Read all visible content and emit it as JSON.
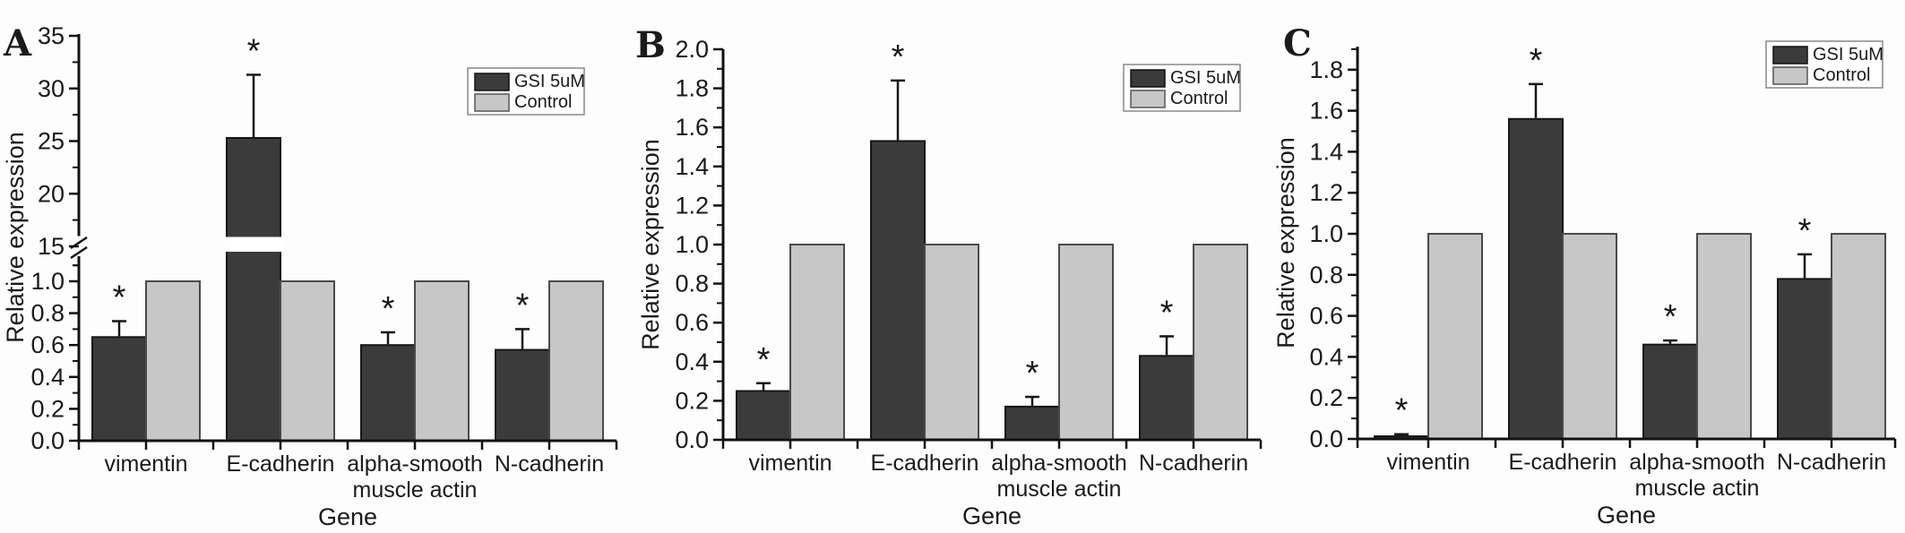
{
  "figure": {
    "ylabel": "Relative expression",
    "xlabel": "Gene",
    "sig_marker": "*",
    "colors": {
      "gsi": "#3b3b3b",
      "control": "#c7c7c7",
      "gsi_border": "#161616",
      "control_border": "#4a4a4a"
    }
  },
  "legend": {
    "gsi_label": "GSI 5uM",
    "control_label": "Control"
  },
  "chart_data": [
    {
      "type": "bar",
      "panel_label": "A",
      "ylabel": "Relative expression",
      "xlabel": "Gene",
      "categories": [
        "vimentin",
        "E-cadherin",
        "alpha-smooth muscle actin",
        "N-cadherin"
      ],
      "category_lines": [
        [
          "vimentin"
        ],
        [
          "E-cadherin"
        ],
        [
          "alpha-smooth",
          "muscle actin"
        ],
        [
          "N-cadherin"
        ]
      ],
      "series": [
        {
          "name": "GSI 5uM",
          "color": "#3b3b3b",
          "border": "#161616",
          "values": [
            0.65,
            25.3,
            0.6,
            0.57
          ],
          "upper_errors": [
            0.1,
            6.0,
            0.08,
            0.13
          ],
          "significant": [
            true,
            true,
            true,
            true
          ]
        },
        {
          "name": "Control",
          "color": "#c7c7c7",
          "border": "#4a4a4a",
          "values": [
            1.0,
            1.0,
            1.0,
            1.0
          ],
          "upper_errors": [
            0,
            0,
            0,
            0
          ],
          "significant": [
            false,
            false,
            false,
            false
          ]
        }
      ],
      "y_axis": {
        "broken": true,
        "segments": [
          {
            "min": 0.0,
            "max": 1.0,
            "tick_step": 0.2,
            "minor_step": 0.1,
            "tick_labels": [
              "0.0",
              "0.2",
              "0.4",
              "0.6",
              "0.8",
              "1.0"
            ]
          },
          {
            "min": 15,
            "max": 35,
            "tick_step": 5,
            "minor_step": 2.5,
            "tick_labels": [
              "15",
              "20",
              "25",
              "30",
              "35"
            ]
          }
        ]
      },
      "legend_entries": [
        "GSI 5uM",
        "Control"
      ],
      "legend_position": "top-right",
      "grid": false
    },
    {
      "type": "bar",
      "panel_label": "B",
      "ylabel": "Relative expression",
      "xlabel": "Gene",
      "categories": [
        "vimentin",
        "E-cadherin",
        "alpha-smooth muscle actin",
        "N-cadherin"
      ],
      "category_lines": [
        [
          "vimentin"
        ],
        [
          "E-cadherin"
        ],
        [
          "alpha-smooth",
          "muscle actin"
        ],
        [
          "N-cadherin"
        ]
      ],
      "series": [
        {
          "name": "GSI 5uM",
          "color": "#3b3b3b",
          "border": "#161616",
          "values": [
            0.25,
            1.53,
            0.17,
            0.43
          ],
          "upper_errors": [
            0.04,
            0.31,
            0.05,
            0.1
          ],
          "significant": [
            true,
            true,
            true,
            true
          ]
        },
        {
          "name": "Control",
          "color": "#c7c7c7",
          "border": "#4a4a4a",
          "values": [
            1.0,
            1.0,
            1.0,
            1.0
          ],
          "upper_errors": [
            0,
            0,
            0,
            0
          ],
          "significant": [
            false,
            false,
            false,
            false
          ]
        }
      ],
      "y_axis": {
        "broken": false,
        "min": 0.0,
        "max": 2.0,
        "tick_step": 0.2,
        "minor_step": 0.1,
        "tick_labels": [
          "0.0",
          "0.2",
          "0.4",
          "0.6",
          "0.8",
          "1.0",
          "1.2",
          "1.4",
          "1.6",
          "1.8",
          "2.0"
        ]
      },
      "legend_entries": [
        "GSI 5uM",
        "Control"
      ],
      "legend_position": "top-right",
      "grid": false
    },
    {
      "type": "bar",
      "panel_label": "C",
      "ylabel": "Relative expression",
      "xlabel": "Gene",
      "categories": [
        "vimentin",
        "E-cadherin",
        "alpha-smooth muscle actin",
        "N-cadherin"
      ],
      "category_lines": [
        [
          "vimentin"
        ],
        [
          "E-cadherin"
        ],
        [
          "alpha-smooth",
          "muscle actin"
        ],
        [
          "N-cadherin"
        ]
      ],
      "series": [
        {
          "name": "GSI 5uM",
          "color": "#3b3b3b",
          "border": "#161616",
          "values": [
            0.013,
            1.56,
            0.46,
            0.78
          ],
          "upper_errors": [
            0.01,
            0.17,
            0.02,
            0.12
          ],
          "significant": [
            true,
            true,
            true,
            true
          ]
        },
        {
          "name": "Control",
          "color": "#c7c7c7",
          "border": "#4a4a4a",
          "values": [
            1.0,
            1.0,
            1.0,
            1.0
          ],
          "upper_errors": [
            0,
            0,
            0,
            0
          ],
          "significant": [
            false,
            false,
            false,
            false
          ]
        }
      ],
      "y_axis": {
        "broken": false,
        "min": 0.0,
        "max": 1.8,
        "tick_step": 0.2,
        "minor_step": 0.1,
        "tick_labels": [
          "0.0",
          "0.2",
          "0.4",
          "0.6",
          "0.8",
          "1.0",
          "1.2",
          "1.4",
          "1.6",
          "1.8"
        ]
      },
      "legend_entries": [
        "GSI 5uM",
        "Control"
      ],
      "legend_position": "top-right",
      "grid": false
    }
  ]
}
